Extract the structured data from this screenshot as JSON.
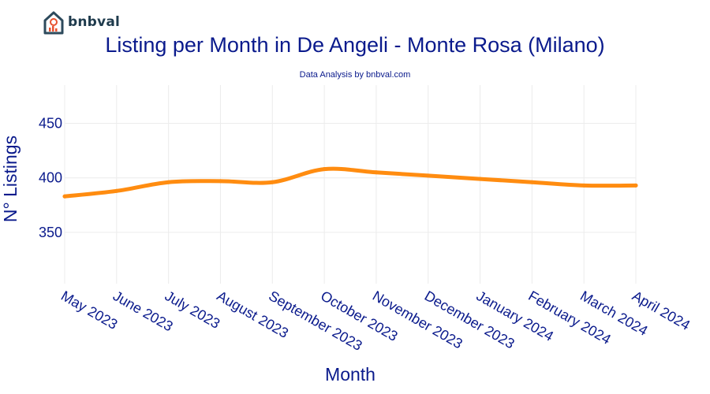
{
  "brand": {
    "name": "bnbval",
    "colors": {
      "house": "#2d4a5c",
      "accent": "#e8522f"
    }
  },
  "chart_data": {
    "type": "line",
    "title": "Listing per Month in De Angeli - Monte Rosa (Milano)",
    "subtitle": "Data Analysis by bnbval.com",
    "xlabel": "Month",
    "ylabel": "N° Listings",
    "categories": [
      "May 2023",
      "June 2023",
      "July 2023",
      "August 2023",
      "September 2023",
      "October 2023",
      "November 2023",
      "December 2023",
      "January 2024",
      "February 2024",
      "March 2024",
      "April 2024"
    ],
    "series": [
      {
        "values": [
          383,
          388,
          396,
          397,
          396,
          408,
          405,
          402,
          399,
          396,
          393,
          393
        ],
        "color": "#ff8c10"
      }
    ],
    "ylim": [
      303,
      485
    ],
    "yticks": [
      350,
      400,
      450
    ],
    "grid": true
  }
}
